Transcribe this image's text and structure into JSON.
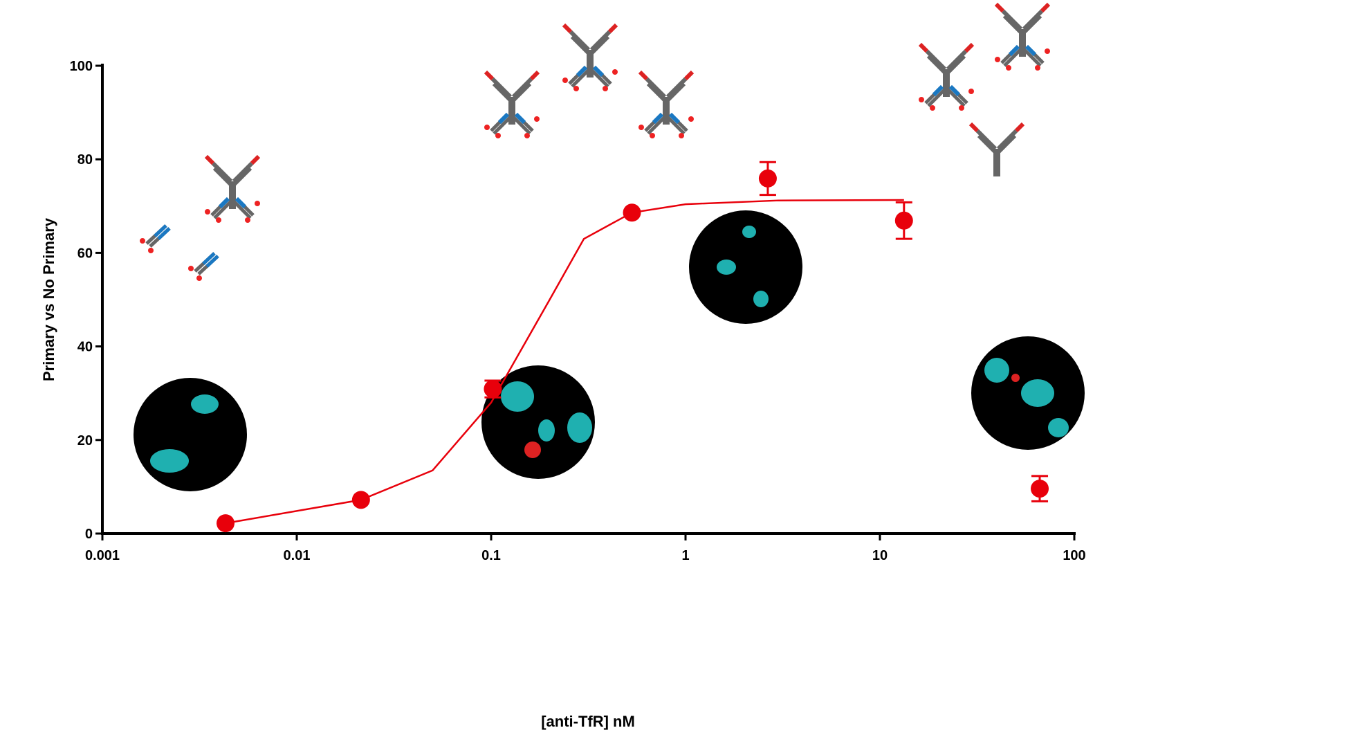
{
  "chart_data": {
    "type": "scatter",
    "x_label": "[anti-TfR] nM",
    "y_label": "Primary vs No Primary",
    "xscale": "log",
    "xlim": [
      0.001,
      100
    ],
    "xticks": [
      0.001,
      0.01,
      0.1,
      1,
      10,
      100
    ],
    "ylim": [
      0,
      100
    ],
    "yticks": [
      0,
      20,
      40,
      60,
      80,
      100
    ],
    "color": "#e8000b",
    "x": [
      0.0043,
      0.0214,
      0.102,
      0.53,
      2.65,
      13.3,
      66.4
    ],
    "values": [
      2.2,
      7.2,
      30.9,
      68.6,
      75.9,
      66.9,
      9.6
    ],
    "errors": [
      0,
      0,
      1.8,
      0,
      3.5,
      3.9,
      2.7
    ],
    "fit": {
      "x": [
        0.0043,
        0.0214,
        0.05,
        0.1,
        0.2,
        0.3,
        0.53,
        1,
        3,
        13.3
      ],
      "values": [
        2.2,
        7.2,
        13.5,
        28,
        50,
        63,
        68.6,
        70.4,
        71.2,
        71.3
      ]
    }
  }
}
